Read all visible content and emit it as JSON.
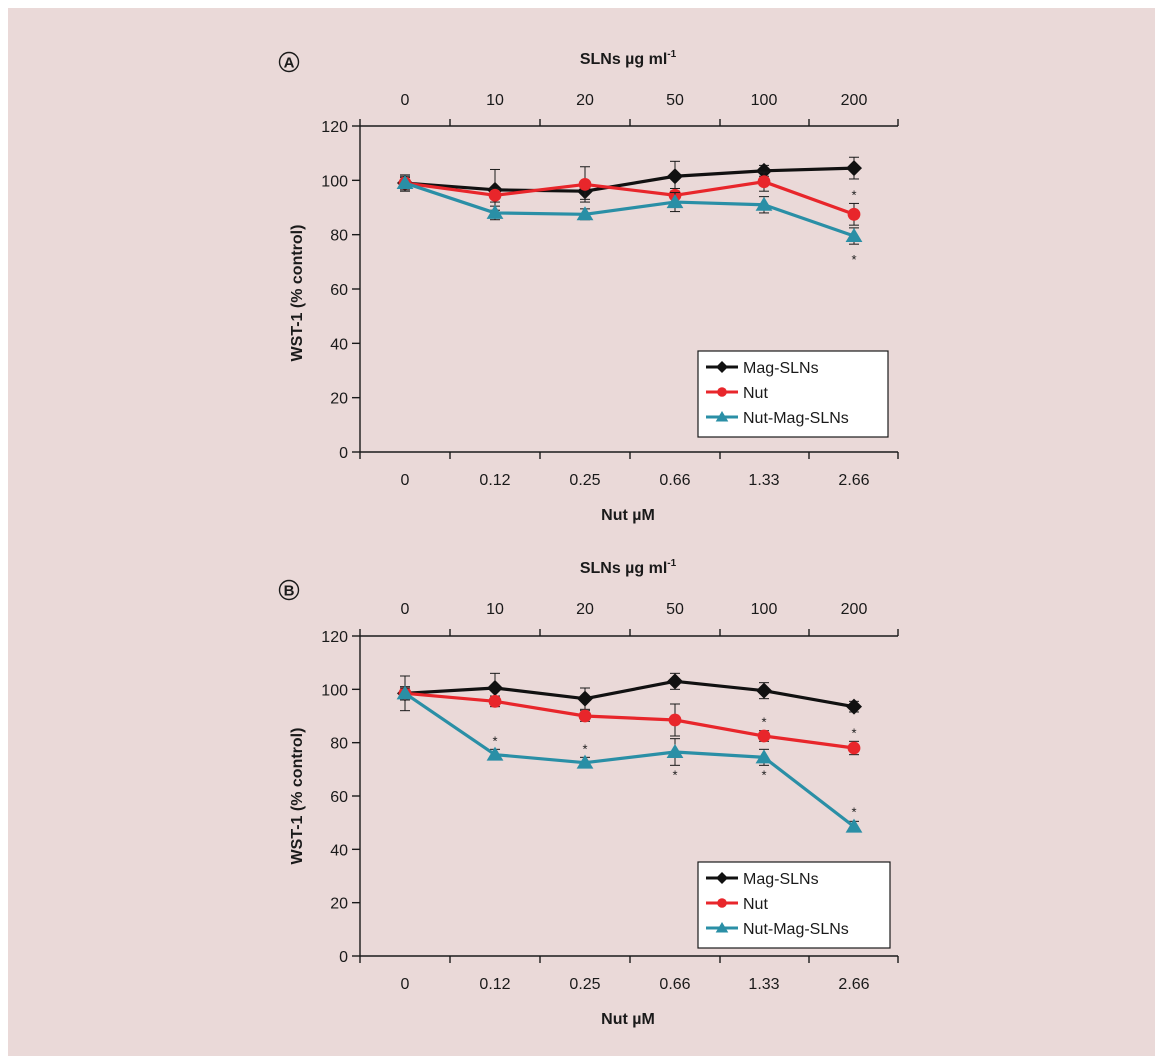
{
  "chart_data": [
    {
      "type": "line",
      "panel_label": "A",
      "top_axis": {
        "label_main": "SLNs µg ml",
        "label_sup": "-1",
        "ticks": [
          "0",
          "10",
          "20",
          "50",
          "100",
          "200"
        ]
      },
      "bottom_axis": {
        "label": "Nut µM",
        "ticks": [
          "0",
          "0.12",
          "0.25",
          "0.66",
          "1.33",
          "2.66"
        ]
      },
      "y_axis": {
        "label": "WST-1 (% control)",
        "ticks": [
          0,
          20,
          40,
          60,
          80,
          100,
          120
        ],
        "ylim": [
          0,
          120
        ]
      },
      "legend_position": "bottom-right",
      "series": [
        {
          "name": "Mag-SLNs",
          "color": "#111111",
          "marker": "diamond",
          "values": [
            99,
            96.5,
            96,
            101.5,
            103.5,
            104.5
          ],
          "errors": [
            2.5,
            7.5,
            3,
            5.5,
            2,
            4
          ],
          "significance": [
            "",
            "",
            "",
            "",
            "",
            ""
          ]
        },
        {
          "name": "Nut",
          "color": "#e8262b",
          "marker": "circle",
          "values": [
            99,
            94.5,
            98.5,
            94.5,
            99.5,
            87.5
          ],
          "errors": [
            2,
            2.5,
            6.5,
            2.5,
            3.5,
            4
          ],
          "significance": [
            "",
            "",
            "",
            "",
            "",
            "*"
          ]
        },
        {
          "name": "Nut-Mag-SLNs",
          "color": "#2a8fa6",
          "marker": "triangle",
          "values": [
            99,
            88,
            87.5,
            92,
            91,
            79.5
          ],
          "errors": [
            3,
            2.5,
            2,
            3.5,
            3,
            3
          ],
          "significance": [
            "",
            "",
            "",
            "",
            "",
            "*"
          ]
        }
      ]
    },
    {
      "type": "line",
      "panel_label": "B",
      "top_axis": {
        "label_main": "SLNs µg ml",
        "label_sup": "-1",
        "ticks": [
          "0",
          "10",
          "20",
          "50",
          "100",
          "200"
        ]
      },
      "bottom_axis": {
        "label": "Nut µM",
        "ticks": [
          "0",
          "0.12",
          "0.25",
          "0.66",
          "1.33",
          "2.66"
        ]
      },
      "y_axis": {
        "label": "WST-1 (% control)",
        "ticks": [
          0,
          20,
          40,
          60,
          80,
          100,
          120
        ],
        "ylim": [
          0,
          120
        ]
      },
      "legend_position": "bottom-right",
      "series": [
        {
          "name": "Mag-SLNs",
          "color": "#111111",
          "marker": "diamond",
          "values": [
            98.5,
            100.5,
            96.5,
            103,
            99.5,
            93.5
          ],
          "errors": [
            6.5,
            5.5,
            4,
            3,
            3,
            2
          ],
          "significance": [
            "",
            "",
            "",
            "",
            "",
            ""
          ]
        },
        {
          "name": "Nut",
          "color": "#e8262b",
          "marker": "circle",
          "values": [
            98.5,
            95.5,
            90,
            88.5,
            82.5,
            78
          ],
          "errors": [
            2.5,
            2,
            2,
            6,
            2,
            2.5
          ],
          "significance": [
            "",
            "",
            "",
            "",
            "*",
            "*"
          ]
        },
        {
          "name": "Nut-Mag-SLNs",
          "color": "#2a8fa6",
          "marker": "triangle",
          "values": [
            98.5,
            75.5,
            72.5,
            76.5,
            74.5,
            48.5
          ],
          "errors": [
            2,
            2,
            2,
            5,
            3,
            2
          ],
          "significance": [
            "",
            "*",
            "*",
            "*",
            "*",
            "*"
          ]
        }
      ]
    }
  ]
}
